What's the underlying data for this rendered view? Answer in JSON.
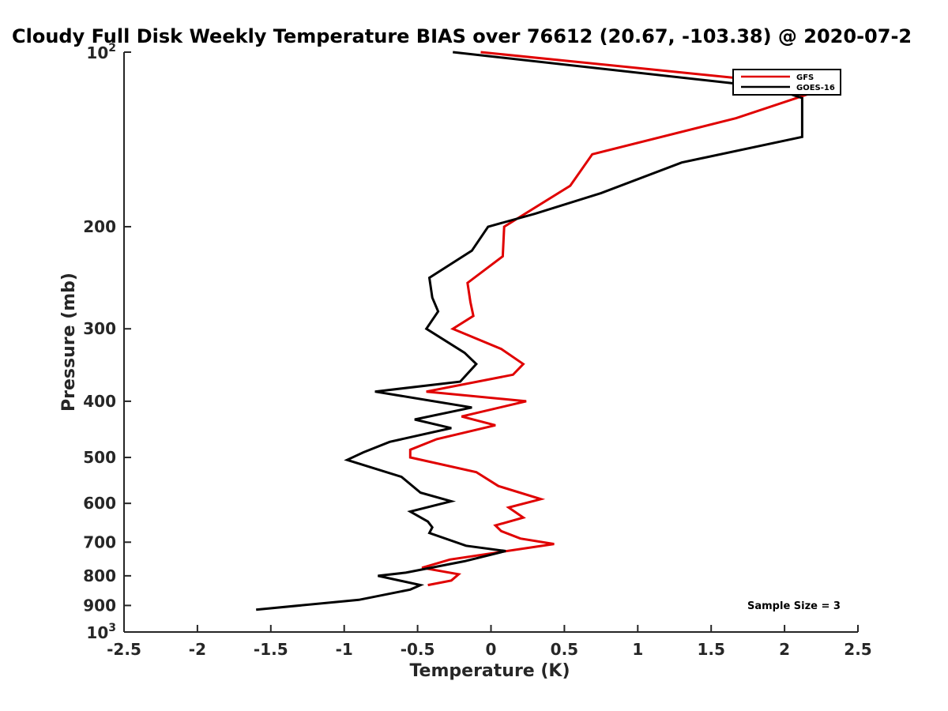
{
  "chart_data": {
    "type": "line",
    "title": "Cloudy Full Disk Weekly Temperature BIAS over 76612 (20.67, -103.38) @ 2020-07-2",
    "xlabel": "Temperature (K)",
    "ylabel": "Pressure (mb)",
    "xlim": [
      -2.5,
      2.5
    ],
    "ylim": [
      100,
      1000
    ],
    "yscale": "log",
    "yreversed": true,
    "xticks": [
      "-2.5",
      "-2",
      "-1.5",
      "-1",
      "-0.5",
      "0",
      "0.5",
      "1",
      "1.5",
      "2",
      "2.5"
    ],
    "xtick_values": [
      -2.5,
      -2,
      -1.5,
      -1,
      -0.5,
      0,
      0.5,
      1,
      1.5,
      2,
      2.5
    ],
    "yticks": [
      {
        "value": 100,
        "base": "10",
        "exp": "2"
      },
      {
        "value": 200,
        "label": "200"
      },
      {
        "value": 300,
        "label": "300"
      },
      {
        "value": 400,
        "label": "400"
      },
      {
        "value": 500,
        "label": "500"
      },
      {
        "value": 600,
        "label": "600"
      },
      {
        "value": 700,
        "label": "700"
      },
      {
        "value": 800,
        "label": "800"
      },
      {
        "value": 900,
        "label": "900"
      },
      {
        "value": 1000,
        "base": "10",
        "exp": "3"
      }
    ],
    "legend_position": "top-right",
    "annotation": "Sample Size = 3",
    "series": [
      {
        "name": "GFS",
        "color": "#e00000",
        "points": [
          [
            -0.07,
            100
          ],
          [
            2.3,
            115
          ],
          [
            1.67,
            130
          ],
          [
            0.69,
            150
          ],
          [
            0.54,
            170
          ],
          [
            0.09,
            200
          ],
          [
            0.08,
            225
          ],
          [
            -0.16,
            250
          ],
          [
            -0.14,
            270
          ],
          [
            -0.12,
            285
          ],
          [
            -0.26,
            300
          ],
          [
            0.07,
            325
          ],
          [
            0.22,
            345
          ],
          [
            0.15,
            360
          ],
          [
            -0.44,
            385
          ],
          [
            0.24,
            400
          ],
          [
            -0.2,
            425
          ],
          [
            0.03,
            440
          ],
          [
            -0.37,
            465
          ],
          [
            -0.55,
            485
          ],
          [
            -0.55,
            500
          ],
          [
            -0.1,
            530
          ],
          [
            0.05,
            560
          ],
          [
            0.34,
            590
          ],
          [
            0.12,
            610
          ],
          [
            0.22,
            635
          ],
          [
            0.03,
            655
          ],
          [
            0.07,
            670
          ],
          [
            0.2,
            690
          ],
          [
            0.43,
            705
          ],
          [
            -0.28,
            750
          ],
          [
            -0.47,
            775
          ],
          [
            -0.22,
            795
          ],
          [
            -0.27,
            815
          ],
          [
            -0.43,
            830
          ]
        ]
      },
      {
        "name": "GOES-16",
        "color": "#000000",
        "points": [
          [
            -0.26,
            100
          ],
          [
            1.9,
            115
          ],
          [
            2.12,
            120
          ],
          [
            2.12,
            140
          ],
          [
            1.3,
            155
          ],
          [
            0.75,
            175
          ],
          [
            0.3,
            190
          ],
          [
            -0.02,
            200
          ],
          [
            -0.13,
            220
          ],
          [
            -0.42,
            245
          ],
          [
            -0.4,
            265
          ],
          [
            -0.36,
            280
          ],
          [
            -0.44,
            300
          ],
          [
            -0.18,
            330
          ],
          [
            -0.1,
            345
          ],
          [
            -0.21,
            370
          ],
          [
            -0.79,
            385
          ],
          [
            -0.13,
            410
          ],
          [
            -0.52,
            430
          ],
          [
            -0.27,
            445
          ],
          [
            -0.69,
            470
          ],
          [
            -0.87,
            490
          ],
          [
            -0.98,
            505
          ],
          [
            -0.61,
            540
          ],
          [
            -0.48,
            575
          ],
          [
            -0.27,
            595
          ],
          [
            -0.55,
            620
          ],
          [
            -0.43,
            645
          ],
          [
            -0.4,
            660
          ],
          [
            -0.42,
            675
          ],
          [
            -0.17,
            710
          ],
          [
            0.1,
            725
          ],
          [
            -0.18,
            755
          ],
          [
            -0.58,
            790
          ],
          [
            -0.77,
            800
          ],
          [
            -0.48,
            830
          ],
          [
            -0.55,
            845
          ],
          [
            -0.9,
            880
          ],
          [
            -1.6,
            915
          ]
        ]
      }
    ]
  }
}
